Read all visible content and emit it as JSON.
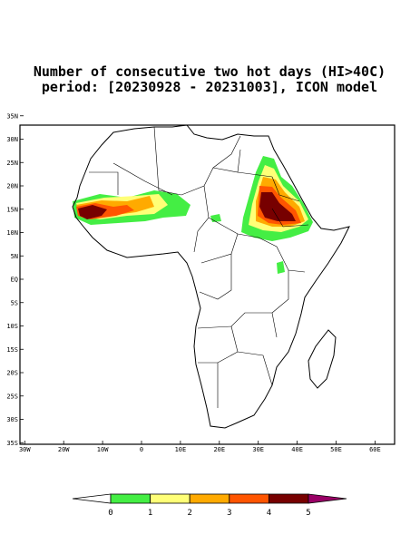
{
  "map": {
    "title": "Number of consecutive two hot days (HI>40C)",
    "subtitle": "period: [20230928 - 20231003], ICON model",
    "lat_ticks": [
      {
        "value": 35,
        "label": "35N"
      },
      {
        "value": 30,
        "label": "30N"
      },
      {
        "value": 25,
        "label": "25N"
      },
      {
        "value": 20,
        "label": "20N"
      },
      {
        "value": 15,
        "label": "15N"
      },
      {
        "value": 10,
        "label": "10N"
      },
      {
        "value": 5,
        "label": "5N"
      },
      {
        "value": 0,
        "label": "EQ"
      },
      {
        "value": -5,
        "label": "5S"
      },
      {
        "value": -10,
        "label": "10S"
      },
      {
        "value": -15,
        "label": "15S"
      },
      {
        "value": -20,
        "label": "20S"
      },
      {
        "value": -25,
        "label": "25S"
      },
      {
        "value": -30,
        "label": "30S"
      },
      {
        "value": -35,
        "label": "35S"
      }
    ],
    "lon_ticks": [
      {
        "value": -30,
        "label": "30W"
      },
      {
        "value": -20,
        "label": "20W"
      },
      {
        "value": -10,
        "label": "10W"
      },
      0,
      {
        "value": 10,
        "label": "10E"
      },
      {
        "value": 20,
        "label": "20E"
      },
      {
        "value": 30,
        "label": "30E"
      },
      {
        "value": 40,
        "label": "40E"
      },
      {
        "value": 50,
        "label": "50E"
      },
      {
        "value": 60,
        "label": "60E"
      }
    ],
    "colorbar": {
      "levels": [
        0,
        1,
        2,
        3,
        4,
        5
      ],
      "colors": [
        "#ffffff",
        "#44ee44",
        "#ffff77",
        "#ffaa00",
        "#ff5500",
        "#770000",
        "#990066"
      ]
    }
  }
}
